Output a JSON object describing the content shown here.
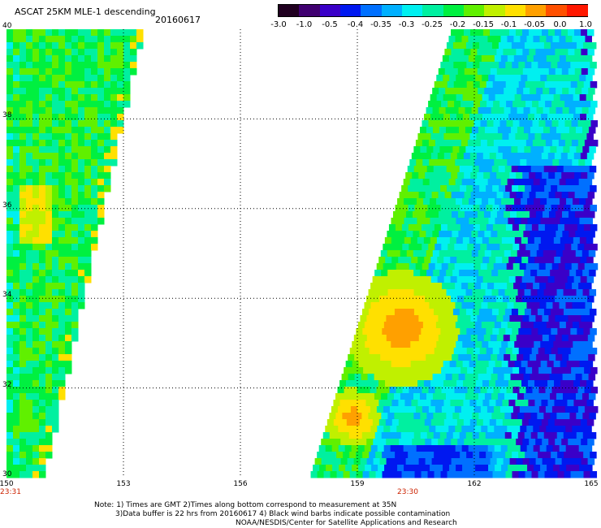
{
  "header": {
    "title": "ASCAT 25KM MLE-1 descending",
    "date": "20160617"
  },
  "colorbar": {
    "labels": [
      "-3.0",
      "-1.0",
      "-0.5",
      "-0.4",
      "-0.35",
      "-0.3",
      "-0.25",
      "-0.2",
      "-0.15",
      "-0.1",
      "-0.05",
      "0.0",
      "1.0"
    ],
    "colors": [
      "#200020",
      "#400070",
      "#3a00c8",
      "#0018f0",
      "#0070ff",
      "#00b0ff",
      "#00f0f0",
      "#00f0a0",
      "#00f040",
      "#60f000",
      "#c0f000",
      "#ffe000",
      "#ffa000",
      "#ff5000",
      "#ff1800"
    ]
  },
  "axes": {
    "lon_labels": [
      "150",
      "153",
      "156",
      "159",
      "162",
      "165"
    ],
    "lat_labels": [
      "40",
      "38",
      "36",
      "34",
      "32",
      "30"
    ],
    "lon_range": [
      150,
      165
    ],
    "lat_range": [
      30,
      40
    ]
  },
  "times": {
    "left": "23:31",
    "right": "23:30"
  },
  "notes": {
    "line1": "Note: 1) Times are GMT 2)Times along bottom correspond to measurement at 35N",
    "line2": "3)Data buffer is 22 hrs from 20160617 4) Black wind barbs indicate possible contamination",
    "line3": "NOAA/NESDIS/Center for Satellite Applications and Research"
  }
}
